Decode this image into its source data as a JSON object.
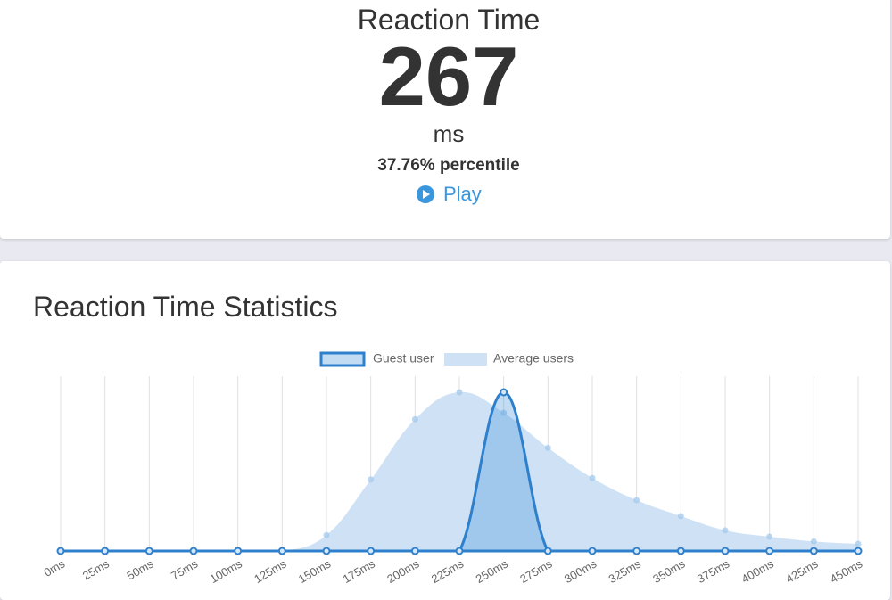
{
  "result": {
    "title": "Reaction Time",
    "value": 267,
    "unit": "ms",
    "percentile": "37.76% percentile",
    "play": "Play"
  },
  "statistics": {
    "title": "Reaction Time Statistics"
  },
  "chart_data": {
    "type": "area",
    "categories": [
      "0ms",
      "25ms",
      "50ms",
      "75ms",
      "100ms",
      "125ms",
      "150ms",
      "175ms",
      "200ms",
      "225ms",
      "250ms",
      "275ms",
      "300ms",
      "325ms",
      "350ms",
      "375ms",
      "400ms",
      "425ms",
      "450ms"
    ],
    "ylim": [
      0,
      100
    ],
    "grid": true,
    "legend": "top",
    "series": [
      {
        "name": "Guest user",
        "color": "#2f80cc",
        "values": [
          0,
          0,
          0,
          0,
          0,
          0,
          0,
          0,
          0,
          0,
          100,
          0,
          0,
          0,
          0,
          0,
          0,
          0,
          0
        ]
      },
      {
        "name": "Average users",
        "color": "#cfe2f5",
        "values": [
          0,
          0,
          0,
          0,
          0,
          0,
          10,
          45,
          83,
          100,
          87,
          65,
          46,
          32,
          22,
          13,
          9,
          6,
          4.5
        ]
      }
    ]
  }
}
